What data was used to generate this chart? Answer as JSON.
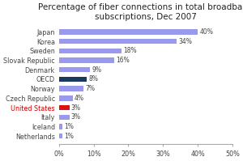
{
  "title": "Percentage of fiber connections in total broadband\nsubscriptions, Dec 2007",
  "categories": [
    "Japan",
    "Korea",
    "Sweden",
    "Slovak Republic",
    "Denmark",
    "OECD",
    "Norway",
    "Czech Republic",
    "United States",
    "Italy",
    "Iceland",
    "Netherlands"
  ],
  "values": [
    40,
    34,
    18,
    16,
    9,
    8,
    7,
    4,
    3,
    3,
    1,
    1
  ],
  "bar_colors": [
    "#9999ee",
    "#9999ee",
    "#9999ee",
    "#9999ee",
    "#9999ee",
    "#1a3a5c",
    "#9999ee",
    "#9999ee",
    "#dd1111",
    "#9999ee",
    "#9999ee",
    "#9999ee"
  ],
  "label_color_special": "#cc0000",
  "xlim": [
    0,
    50
  ],
  "xtick_values": [
    0,
    10,
    20,
    30,
    40,
    50
  ],
  "xtick_labels": [
    "0%",
    "10%",
    "20%",
    "30%",
    "40%",
    "50%"
  ],
  "title_fontsize": 7.5,
  "label_fontsize": 5.8,
  "value_fontsize": 5.5,
  "background_color": "#ffffff"
}
